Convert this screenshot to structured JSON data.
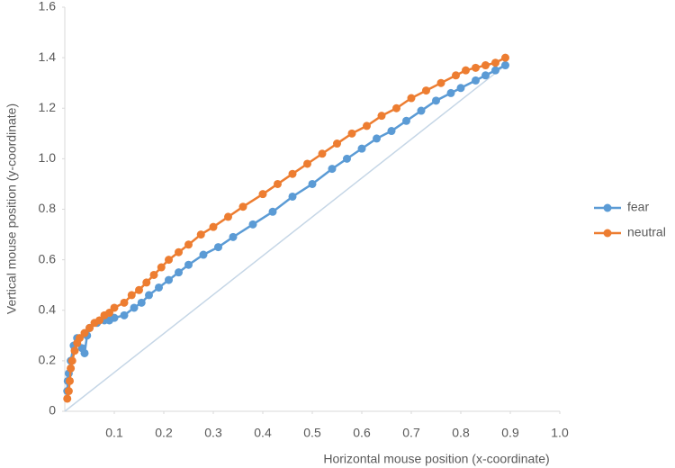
{
  "chart_data": {
    "type": "line",
    "x_label": "Horizontal mouse position (x-coordinate)",
    "y_label": "Vertical mouse position (y-coordinate)",
    "xlim": [
      0,
      1
    ],
    "xticks": [
      0.1,
      0.2,
      0.3,
      0.4,
      0.5,
      0.6,
      0.7,
      0.8,
      0.9,
      {
        "value": 1,
        "label": "1.0"
      }
    ],
    "ylim": [
      0,
      1.6
    ],
    "yticks": [
      0,
      0.2,
      0.4,
      0.6,
      0.8,
      {
        "value": 1,
        "label": "1.0"
      },
      1.2,
      1.4,
      1.6
    ],
    "grid": false,
    "legend": "right",
    "markers": true,
    "series": [
      {
        "name": "fear",
        "color": "#5b9bd5",
        "x": [
          0.005,
          0.006,
          0.008,
          0.012,
          0.018,
          0.025,
          0.035,
          0.04,
          0.045,
          0.05,
          0.065,
          0.08,
          0.09,
          0.1,
          0.12,
          0.14,
          0.155,
          0.17,
          0.19,
          0.21,
          0.23,
          0.25,
          0.28,
          0.31,
          0.34,
          0.38,
          0.42,
          0.46,
          0.5,
          0.54,
          0.57,
          0.6,
          0.63,
          0.66,
          0.69,
          0.72,
          0.75,
          0.78,
          0.8,
          0.83,
          0.85,
          0.87,
          0.89
        ],
        "values": [
          0.08,
          0.12,
          0.15,
          0.2,
          0.26,
          0.29,
          0.25,
          0.23,
          0.3,
          0.33,
          0.35,
          0.36,
          0.36,
          0.37,
          0.38,
          0.41,
          0.43,
          0.46,
          0.49,
          0.52,
          0.55,
          0.58,
          0.62,
          0.65,
          0.69,
          0.74,
          0.79,
          0.85,
          0.9,
          0.96,
          1.0,
          1.04,
          1.08,
          1.11,
          1.15,
          1.19,
          1.23,
          1.26,
          1.28,
          1.31,
          1.33,
          1.35,
          1.37
        ]
      },
      {
        "name": "neutral",
        "color": "#ed7d31",
        "x": [
          0.005,
          0.008,
          0.01,
          0.012,
          0.015,
          0.02,
          0.025,
          0.03,
          0.04,
          0.05,
          0.06,
          0.07,
          0.08,
          0.09,
          0.1,
          0.12,
          0.135,
          0.15,
          0.165,
          0.18,
          0.195,
          0.21,
          0.23,
          0.25,
          0.275,
          0.3,
          0.33,
          0.36,
          0.4,
          0.43,
          0.46,
          0.49,
          0.52,
          0.55,
          0.58,
          0.61,
          0.64,
          0.67,
          0.7,
          0.73,
          0.76,
          0.79,
          0.81,
          0.83,
          0.85,
          0.87,
          0.89
        ],
        "values": [
          0.05,
          0.08,
          0.12,
          0.17,
          0.2,
          0.24,
          0.27,
          0.29,
          0.31,
          0.33,
          0.35,
          0.36,
          0.38,
          0.39,
          0.41,
          0.43,
          0.46,
          0.48,
          0.51,
          0.54,
          0.57,
          0.6,
          0.63,
          0.66,
          0.7,
          0.73,
          0.77,
          0.81,
          0.86,
          0.9,
          0.94,
          0.98,
          1.02,
          1.06,
          1.1,
          1.13,
          1.17,
          1.2,
          1.24,
          1.27,
          1.3,
          1.33,
          1.35,
          1.36,
          1.37,
          1.38,
          1.4
        ]
      }
    ]
  }
}
